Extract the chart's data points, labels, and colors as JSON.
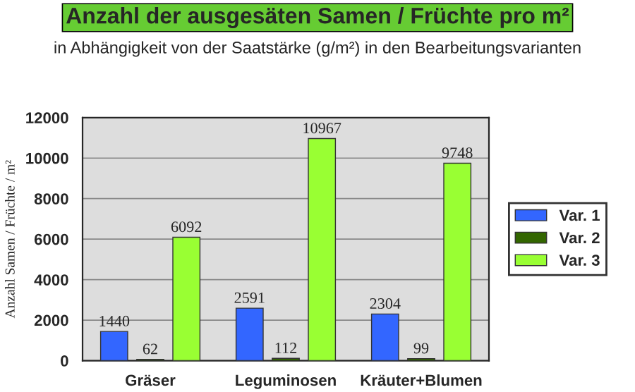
{
  "chart_data": {
    "type": "bar",
    "title": "Anzahl der ausgesäten Samen / Früchte pro m²",
    "subtitle": "in Abhängigkeit von der Saatstärke (g/m²) in den Bearbeitungsvarianten",
    "ylabel": "Anzahl Samen / Früchte / m²",
    "categories": [
      "Gräser",
      "Leguminosen",
      "Kräuter+Blumen"
    ],
    "series": [
      {
        "name": "Var. 1",
        "color": "#3366ff",
        "values": [
          1440,
          2591,
          2304
        ]
      },
      {
        "name": "Var. 2",
        "color": "#336600",
        "values": [
          62,
          112,
          99
        ]
      },
      {
        "name": "Var. 3",
        "color": "#99ff33",
        "values": [
          6092,
          10967,
          9748
        ]
      }
    ],
    "ylim": [
      0,
      12000
    ],
    "yticks": [
      0,
      2000,
      4000,
      6000,
      8000,
      10000,
      12000
    ],
    "grid": "y",
    "legend": "right",
    "data_labels": true
  }
}
